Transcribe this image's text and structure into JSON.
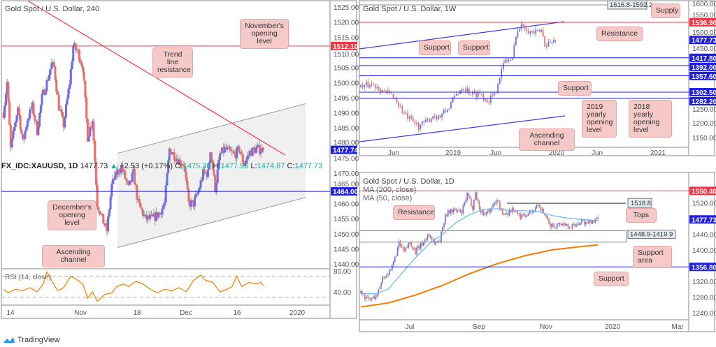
{
  "left": {
    "title": "Gold Spot / U.S. Dollar, 240",
    "price_ticks": [
      1525,
      1520,
      1515,
      1510,
      1505,
      1500,
      1495,
      1490,
      1485,
      1480,
      1475,
      1470,
      1465,
      1460,
      1455,
      1450,
      1445,
      1440
    ],
    "date_ticks": [
      "14",
      "Nov",
      "18",
      "Dec",
      "16",
      "2020"
    ],
    "levels": [
      {
        "label": "1512.10",
        "value": 1512.1,
        "color": "#f23645"
      },
      {
        "label": "1477.74",
        "value": 1477.74,
        "color": "#1e1ee8"
      },
      {
        "label": "1464.00",
        "value": 1464.0,
        "color": "#1e1ee8"
      }
    ],
    "rsi": {
      "label": "RSI (14, close)",
      "ticks": [
        80,
        40
      ],
      "upper": 70,
      "lower": 30,
      "anchors": [
        [
          0,
          45
        ],
        [
          4,
          38
        ],
        [
          10,
          45
        ],
        [
          16,
          42
        ],
        [
          22,
          48
        ],
        [
          28,
          40
        ],
        [
          33,
          55
        ],
        [
          36,
          78
        ],
        [
          40,
          62
        ],
        [
          45,
          42
        ],
        [
          50,
          48
        ],
        [
          56,
          70
        ],
        [
          60,
          65
        ],
        [
          66,
          55
        ],
        [
          70,
          28
        ],
        [
          74,
          40
        ],
        [
          78,
          22
        ],
        [
          84,
          35
        ],
        [
          90,
          38
        ],
        [
          94,
          50
        ],
        [
          100,
          55
        ],
        [
          104,
          50
        ],
        [
          110,
          60
        ],
        [
          116,
          55
        ],
        [
          122,
          45
        ],
        [
          128,
          38
        ],
        [
          134,
          45
        ],
        [
          140,
          42
        ],
        [
          146,
          48
        ],
        [
          152,
          40
        ],
        [
          158,
          62
        ],
        [
          164,
          72
        ],
        [
          168,
          62
        ],
        [
          174,
          58
        ],
        [
          180,
          40
        ],
        [
          186,
          45
        ],
        [
          190,
          50
        ],
        [
          194,
          70
        ],
        [
          198,
          50
        ],
        [
          204,
          58
        ],
        [
          210,
          55
        ],
        [
          214,
          58
        ],
        [
          216,
          52
        ]
      ]
    },
    "candle_anchors": [
      [
        0,
        1490
      ],
      [
        3,
        1500
      ],
      [
        6,
        1478
      ],
      [
        12,
        1492
      ],
      [
        16,
        1480
      ],
      [
        20,
        1488
      ],
      [
        24,
        1492
      ],
      [
        28,
        1484
      ],
      [
        32,
        1495
      ],
      [
        36,
        1500
      ],
      [
        40,
        1506
      ],
      [
        42,
        1505
      ],
      [
        46,
        1492
      ],
      [
        50,
        1486
      ],
      [
        55,
        1500
      ],
      [
        58,
        1512
      ],
      [
        62,
        1510
      ],
      [
        66,
        1505
      ],
      [
        70,
        1482
      ],
      [
        74,
        1488
      ],
      [
        78,
        1460
      ],
      [
        82,
        1455
      ],
      [
        86,
        1451
      ],
      [
        90,
        1466
      ],
      [
        94,
        1470
      ],
      [
        98,
        1472
      ],
      [
        104,
        1465
      ],
      [
        108,
        1470
      ],
      [
        112,
        1460
      ],
      [
        118,
        1455
      ],
      [
        124,
        1455
      ],
      [
        130,
        1457
      ],
      [
        134,
        1460
      ],
      [
        138,
        1478
      ],
      [
        142,
        1476
      ],
      [
        146,
        1474
      ],
      [
        150,
        1473
      ],
      [
        154,
        1460
      ],
      [
        158,
        1460
      ],
      [
        162,
        1464
      ],
      [
        166,
        1470
      ],
      [
        170,
        1470
      ],
      [
        172,
        1478
      ],
      [
        176,
        1465
      ],
      [
        180,
        1476
      ],
      [
        184,
        1478
      ],
      [
        188,
        1477
      ],
      [
        192,
        1476
      ],
      [
        196,
        1478
      ],
      [
        200,
        1473
      ],
      [
        205,
        1477
      ],
      [
        210,
        1478
      ],
      [
        216,
        1477.74
      ]
    ],
    "channel": {
      "upper": [
        1476.6,
        1493
      ],
      "lower": [
        1445.4,
        1462
      ]
    },
    "trendline": [
      1527,
      1476
    ]
  },
  "left_callouts": {
    "november": "November's opening level",
    "trend": "Trend line resistance",
    "december": "December's opening level",
    "channel": "Ascending channel"
  },
  "weekly": {
    "title": "Gold Spot / U.S. Dollar, 1W",
    "price_ticks": [
      1600,
      1550,
      1500,
      1450,
      1250,
      1200,
      1150
    ],
    "date_ticks": [
      "Jun",
      "2019",
      "Jun",
      "2020",
      "Jun",
      "2021"
    ],
    "levels": [
      {
        "label": "1536.90",
        "value": 1536.9,
        "color": "#f23645"
      },
      {
        "label": "1477.73",
        "value": 1477.73,
        "color": "#1e1ee8"
      },
      {
        "label": "1417.80",
        "value": 1417.8,
        "color": "#1e1ee8"
      },
      {
        "label": "1392.00",
        "value": 1392.0,
        "color": "#1e1ee8"
      },
      {
        "label": "1357.60",
        "value": 1357.6,
        "color": "#1e1ee8"
      },
      {
        "label": "1302.50",
        "value": 1302.5,
        "color": "#1e1ee8"
      },
      {
        "label": "1282.20",
        "value": 1282.2,
        "color": "#1e1ee8"
      }
    ],
    "supply": "1616.8-1592.2",
    "candle_anchors": [
      [
        0,
        1320
      ],
      [
        6,
        1330
      ],
      [
        10,
        1320
      ],
      [
        14,
        1300
      ],
      [
        18,
        1290
      ],
      [
        24,
        1230
      ],
      [
        28,
        1205
      ],
      [
        32,
        1190
      ],
      [
        36,
        1200
      ],
      [
        40,
        1225
      ],
      [
        44,
        1220
      ],
      [
        48,
        1245
      ],
      [
        52,
        1285
      ],
      [
        56,
        1320
      ],
      [
        58,
        1315
      ],
      [
        62,
        1295
      ],
      [
        66,
        1300
      ],
      [
        70,
        1275
      ],
      [
        74,
        1290
      ],
      [
        76,
        1340
      ],
      [
        80,
        1410
      ],
      [
        84,
        1410
      ],
      [
        86,
        1500
      ],
      [
        90,
        1530
      ],
      [
        94,
        1505
      ],
      [
        98,
        1500
      ],
      [
        100,
        1510
      ],
      [
        102,
        1465
      ],
      [
        106,
        1470
      ],
      [
        108,
        1477.73
      ]
    ]
  },
  "weekly_callouts": {
    "supply": "Supply",
    "resistance": "Resistance",
    "support1": "Support",
    "support2": "Support",
    "support3": "Support",
    "y2019": "2019 yearly opening level",
    "y2018": "2018 yearly opening level",
    "channel": "Ascending channel"
  },
  "ticker": {
    "symbol": "FX_IDC:XAUUSD, 1D",
    "price": "1477.73",
    "arrow": "▲",
    "change": "+2.53 (+0.17%)",
    "o_label": "O:",
    "o": "1475.30",
    "h_label": "H:",
    "h": "1477.96",
    "l_label": "L:",
    "l": "1474.87",
    "c_label": "C:",
    "c": "1477.73"
  },
  "daily": {
    "title": "Gold Spot / U.S. Dollar, 1D",
    "ma200": "MA (200, close)",
    "ma50": "MA (50, close)",
    "price_ticks": [
      1520,
      1440,
      1400,
      1320,
      1280,
      1240
    ],
    "date_ticks": [
      "Jul",
      "Sep",
      "Nov",
      "2020",
      "Mar"
    ],
    "levels": [
      {
        "label": "1550.40",
        "value": 1550.4,
        "color": "#f23645"
      },
      {
        "label": "1477.73",
        "value": 1477.73,
        "color": "#1e1ee8"
      },
      {
        "label": "1356.80",
        "value": 1356.8,
        "color": "#1e1ee8"
      }
    ],
    "tops": "1518.8",
    "support_area": "1448.9-1419.9",
    "candle_anchors": [
      [
        0,
        1290
      ],
      [
        6,
        1272
      ],
      [
        12,
        1285
      ],
      [
        16,
        1330
      ],
      [
        22,
        1345
      ],
      [
        28,
        1415
      ],
      [
        32,
        1395
      ],
      [
        36,
        1420
      ],
      [
        40,
        1395
      ],
      [
        46,
        1420
      ],
      [
        50,
        1440
      ],
      [
        54,
        1418
      ],
      [
        58,
        1425
      ],
      [
        62,
        1490
      ],
      [
        66,
        1500
      ],
      [
        70,
        1500
      ],
      [
        74,
        1495
      ],
      [
        78,
        1540
      ],
      [
        82,
        1510
      ],
      [
        84,
        1545
      ],
      [
        88,
        1495
      ],
      [
        92,
        1495
      ],
      [
        96,
        1505
      ],
      [
        100,
        1530
      ],
      [
        104,
        1490
      ],
      [
        108,
        1495
      ],
      [
        112,
        1505
      ],
      [
        116,
        1485
      ],
      [
        120,
        1490
      ],
      [
        126,
        1500
      ],
      [
        130,
        1510
      ],
      [
        134,
        1495
      ],
      [
        138,
        1465
      ],
      [
        142,
        1460
      ],
      [
        146,
        1468
      ],
      [
        150,
        1465
      ],
      [
        154,
        1460
      ],
      [
        158,
        1465
      ],
      [
        162,
        1475
      ],
      [
        166,
        1465
      ],
      [
        170,
        1475
      ],
      [
        174,
        1477.73
      ]
    ],
    "ma50_anchors": [
      [
        0,
        1290
      ],
      [
        10,
        1288
      ],
      [
        20,
        1300
      ],
      [
        30,
        1340
      ],
      [
        40,
        1380
      ],
      [
        50,
        1415
      ],
      [
        60,
        1440
      ],
      [
        70,
        1470
      ],
      [
        80,
        1490
      ],
      [
        90,
        1503
      ],
      [
        100,
        1505
      ],
      [
        110,
        1500
      ],
      [
        120,
        1500
      ],
      [
        130,
        1498
      ],
      [
        140,
        1488
      ],
      [
        150,
        1482
      ],
      [
        160,
        1478
      ],
      [
        174,
        1475
      ]
    ],
    "ma200_anchors": [
      [
        0,
        1255
      ],
      [
        20,
        1265
      ],
      [
        40,
        1285
      ],
      [
        60,
        1310
      ],
      [
        80,
        1340
      ],
      [
        100,
        1365
      ],
      [
        120,
        1385
      ],
      [
        140,
        1400
      ],
      [
        160,
        1408
      ],
      [
        174,
        1413
      ]
    ]
  },
  "daily_callouts": {
    "resistance": "Resistance",
    "tops": "Tops",
    "support_area": "Support area",
    "support": "Support"
  },
  "branding": "TradingView",
  "chart_data": [
    {
      "type": "candlestick",
      "title": "Gold Spot / U.S. Dollar, 240",
      "ylim": [
        1438,
        1527
      ],
      "last": 1477.74
    },
    {
      "type": "candlestick",
      "title": "Gold Spot / U.S. Dollar, 1W",
      "ylim": [
        1130,
        1610
      ],
      "last": 1477.73
    },
    {
      "type": "candlestick",
      "title": "Gold Spot / U.S. Dollar, 1D",
      "ylim": [
        1225,
        1565
      ],
      "last": 1477.73
    }
  ]
}
